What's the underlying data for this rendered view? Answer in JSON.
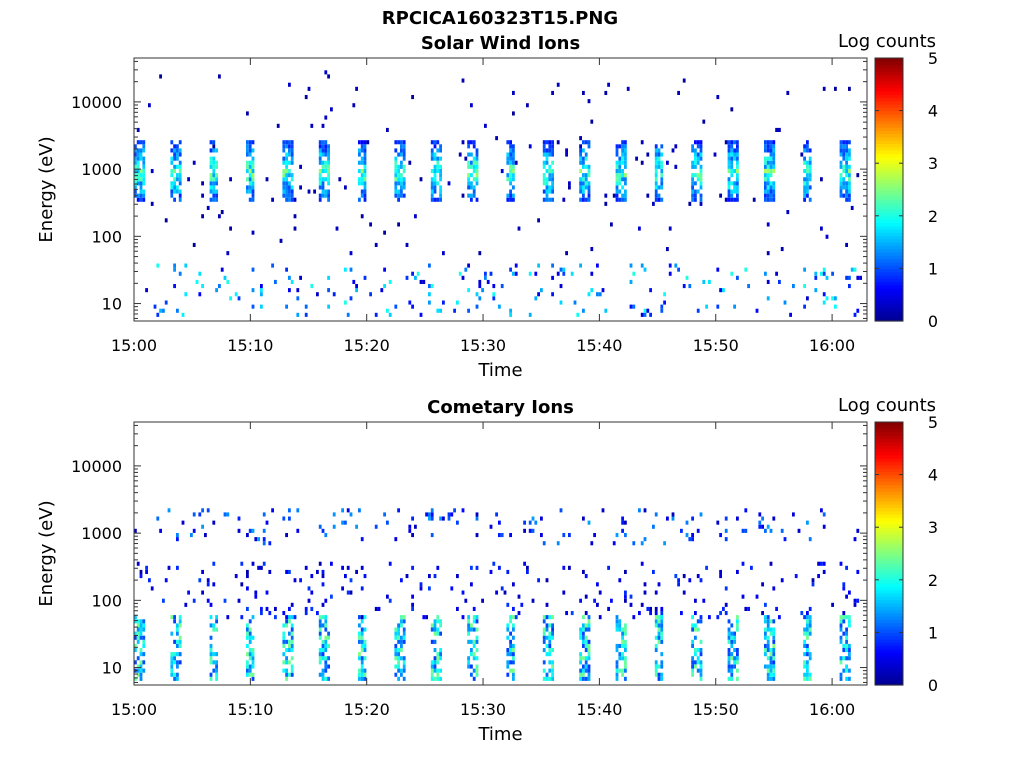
{
  "figure": {
    "title": "RPCICA160323T15.PNG"
  },
  "colors": {
    "axis": "#333333",
    "background": "#ffffff",
    "colormap": [
      "#00008f",
      "#0000ff",
      "#0080ff",
      "#00ffff",
      "#80ff80",
      "#ffff00",
      "#ff8000",
      "#ff0000",
      "#800000"
    ]
  },
  "chart_data": [
    {
      "type": "heatmap",
      "title": "Solar Wind Ions",
      "xlabel": "Time",
      "ylabel": "Energy (eV)",
      "x_ticks": [
        "15:00",
        "15:10",
        "15:20",
        "15:30",
        "15:40",
        "15:50",
        "16:00"
      ],
      "x_range_minutes": [
        0,
        63
      ],
      "y_scale": "log",
      "y_ticks": [
        "10",
        "100",
        "1000",
        "10000"
      ],
      "y_range": [
        5.5,
        45000
      ],
      "colorbar": {
        "label": "Log counts",
        "range": [
          0,
          5
        ],
        "ticks": [
          "0",
          "1",
          "2",
          "3",
          "4",
          "5"
        ]
      },
      "features": [
        {
          "component": "solar wind beam",
          "energy_center_eV": 900,
          "energy_spread_eV": [
            400,
            2500
          ],
          "peak_log_counts": 2.8,
          "burst_period_min": 3.2
        },
        {
          "component": "low-energy ions",
          "energy_range_eV": [
            6,
            40
          ],
          "peak_log_counts": 1.7
        },
        {
          "component": "sparse background",
          "energy_range_eV": [
            50,
            30000
          ],
          "peak_log_counts": 0.3
        }
      ]
    },
    {
      "type": "heatmap",
      "title": "Cometary Ions",
      "xlabel": "Time",
      "ylabel": "Energy (eV)",
      "x_ticks": [
        "15:00",
        "15:10",
        "15:20",
        "15:30",
        "15:40",
        "15:50",
        "16:00"
      ],
      "x_range_minutes": [
        0,
        63
      ],
      "y_scale": "log",
      "y_ticks": [
        "10",
        "100",
        "1000",
        "10000"
      ],
      "y_range": [
        5.5,
        45000
      ],
      "colorbar": {
        "label": "Log counts",
        "range": [
          0,
          5
        ],
        "ticks": [
          "0",
          "1",
          "2",
          "3",
          "4",
          "5"
        ]
      },
      "features": [
        {
          "component": "cometary ions",
          "energy_range_eV": [
            6,
            60
          ],
          "peak_log_counts": 2.5,
          "burst_period_min": 3.2
        },
        {
          "component": "high-energy blips",
          "energy_range_eV": [
            700,
            2500
          ],
          "peak_log_counts": 1.2
        },
        {
          "component": "intermediate tails",
          "energy_range_eV": [
            50,
            400
          ],
          "peak_log_counts": 0.8
        }
      ]
    }
  ]
}
